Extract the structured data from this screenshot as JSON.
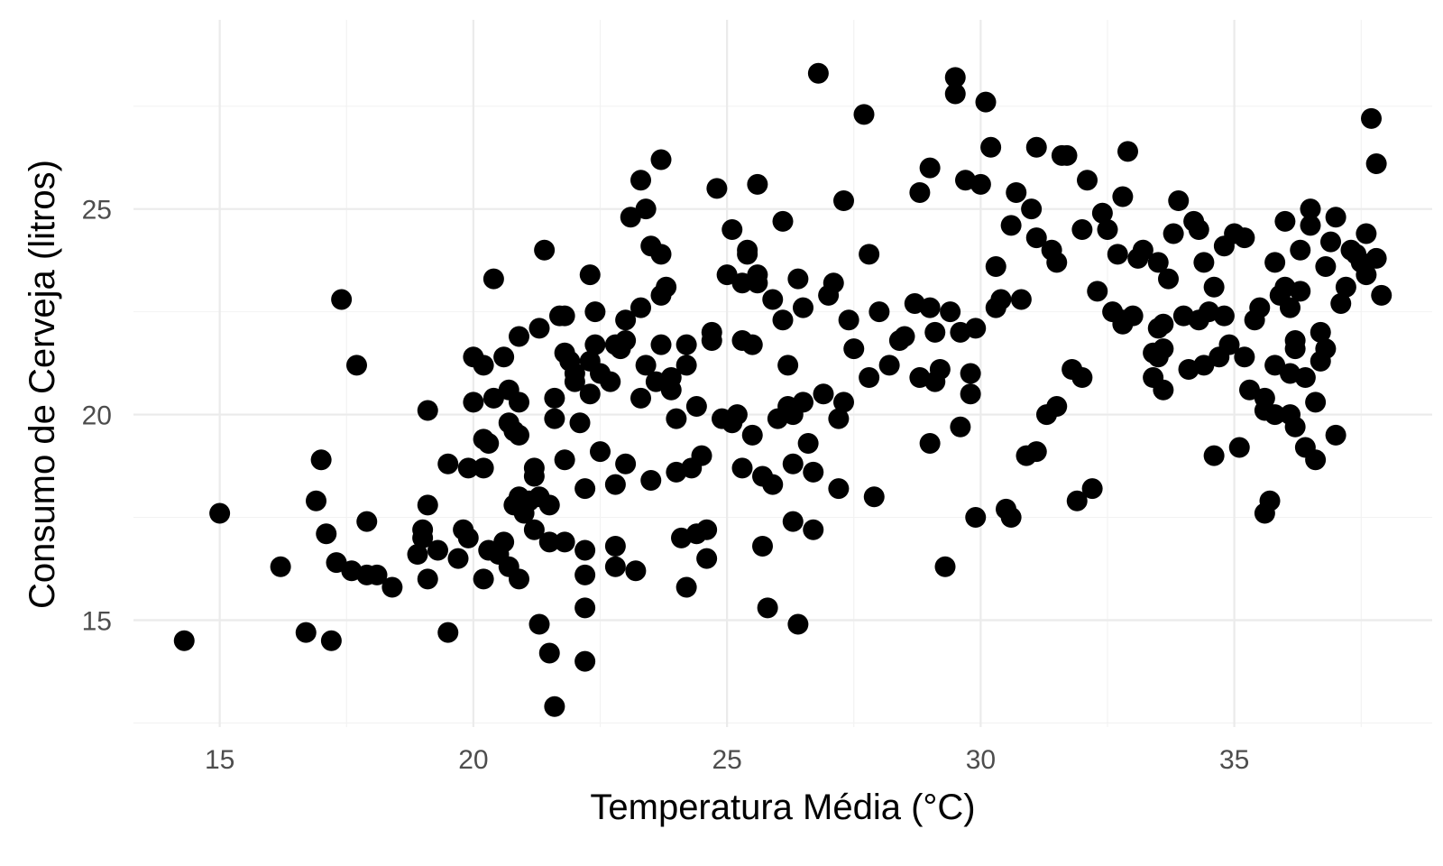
{
  "chart_data": {
    "type": "scatter",
    "xlabel": "Temperatura Média (°C)",
    "ylabel": "Consumo de Cerveja (litros)",
    "xlim": [
      13.3,
      38.9
    ],
    "ylim": [
      12.4,
      29.6
    ],
    "x_ticks": [
      15,
      20,
      25,
      30,
      35
    ],
    "y_ticks": [
      15,
      20,
      25
    ],
    "x_tick_labels": [
      "15",
      "20",
      "25",
      "30",
      "35"
    ],
    "y_tick_labels": [
      "15",
      "20",
      "25"
    ],
    "grid": true,
    "legend": "none",
    "point_color": "#000000",
    "points": [
      [
        14.3,
        14.5
      ],
      [
        15.0,
        17.6
      ],
      [
        16.2,
        16.3
      ],
      [
        16.7,
        14.7
      ],
      [
        17.0,
        18.9
      ],
      [
        16.9,
        17.9
      ],
      [
        17.1,
        17.1
      ],
      [
        17.2,
        14.5
      ],
      [
        17.4,
        22.8
      ],
      [
        17.3,
        16.4
      ],
      [
        17.7,
        21.2
      ],
      [
        17.6,
        16.2
      ],
      [
        17.9,
        16.1
      ],
      [
        17.9,
        17.4
      ],
      [
        18.1,
        16.1
      ],
      [
        18.4,
        15.8
      ],
      [
        18.9,
        16.6
      ],
      [
        19.0,
        17.2
      ],
      [
        19.0,
        17.0
      ],
      [
        19.1,
        16.0
      ],
      [
        19.1,
        20.1
      ],
      [
        19.1,
        17.8
      ],
      [
        19.3,
        16.7
      ],
      [
        19.5,
        18.8
      ],
      [
        19.5,
        14.7
      ],
      [
        19.7,
        16.5
      ],
      [
        19.8,
        17.2
      ],
      [
        19.9,
        18.7
      ],
      [
        19.9,
        17.0
      ],
      [
        20.0,
        20.3
      ],
      [
        20.0,
        21.4
      ],
      [
        20.2,
        21.2
      ],
      [
        20.2,
        16.0
      ],
      [
        20.2,
        18.7
      ],
      [
        20.2,
        19.4
      ],
      [
        20.3,
        19.3
      ],
      [
        20.3,
        16.7
      ],
      [
        20.4,
        23.3
      ],
      [
        20.4,
        20.4
      ],
      [
        20.6,
        21.4
      ],
      [
        20.5,
        16.6
      ],
      [
        20.6,
        16.9
      ],
      [
        20.7,
        20.6
      ],
      [
        20.7,
        19.8
      ],
      [
        20.8,
        19.6
      ],
      [
        20.7,
        16.3
      ],
      [
        20.8,
        17.8
      ],
      [
        20.9,
        21.9
      ],
      [
        20.9,
        20.3
      ],
      [
        20.9,
        18.0
      ],
      [
        20.9,
        16.0
      ],
      [
        20.9,
        19.5
      ],
      [
        21.0,
        17.6
      ],
      [
        21.1,
        17.9
      ],
      [
        21.2,
        18.5
      ],
      [
        21.2,
        18.7
      ],
      [
        21.2,
        17.2
      ],
      [
        21.3,
        14.9
      ],
      [
        21.3,
        22.1
      ],
      [
        21.3,
        18.0
      ],
      [
        21.4,
        24.0
      ],
      [
        21.5,
        17.8
      ],
      [
        21.5,
        16.9
      ],
      [
        21.5,
        14.2
      ],
      [
        21.6,
        20.4
      ],
      [
        21.6,
        19.9
      ],
      [
        21.6,
        12.9
      ],
      [
        21.7,
        22.4
      ],
      [
        21.8,
        21.5
      ],
      [
        21.8,
        22.4
      ],
      [
        21.8,
        16.9
      ],
      [
        21.8,
        18.9
      ],
      [
        21.9,
        21.3
      ],
      [
        22.0,
        21.0
      ],
      [
        22.0,
        20.8
      ],
      [
        22.1,
        19.8
      ],
      [
        22.2,
        18.2
      ],
      [
        22.2,
        16.1
      ],
      [
        22.2,
        16.7
      ],
      [
        22.2,
        15.3
      ],
      [
        22.2,
        14.0
      ],
      [
        22.3,
        21.3
      ],
      [
        22.3,
        20.5
      ],
      [
        22.3,
        23.4
      ],
      [
        22.4,
        22.5
      ],
      [
        22.4,
        21.7
      ],
      [
        22.5,
        21.0
      ],
      [
        22.5,
        19.1
      ],
      [
        22.7,
        20.8
      ],
      [
        22.8,
        21.7
      ],
      [
        22.8,
        18.3
      ],
      [
        22.8,
        16.3
      ],
      [
        22.8,
        16.8
      ],
      [
        22.9,
        21.6
      ],
      [
        23.0,
        21.8
      ],
      [
        23.0,
        22.3
      ],
      [
        23.0,
        18.8
      ],
      [
        23.1,
        24.8
      ],
      [
        23.2,
        16.2
      ],
      [
        23.3,
        25.7
      ],
      [
        23.3,
        22.6
      ],
      [
        23.3,
        20.4
      ],
      [
        23.4,
        25.0
      ],
      [
        23.4,
        21.2
      ],
      [
        23.5,
        24.1
      ],
      [
        23.5,
        18.4
      ],
      [
        23.6,
        20.8
      ],
      [
        23.7,
        23.9
      ],
      [
        23.7,
        22.9
      ],
      [
        23.7,
        21.7
      ],
      [
        23.7,
        26.2
      ],
      [
        23.8,
        23.1
      ],
      [
        23.9,
        20.6
      ],
      [
        23.9,
        20.9
      ],
      [
        24.0,
        19.9
      ],
      [
        24.0,
        18.6
      ],
      [
        24.1,
        17.0
      ],
      [
        24.2,
        15.8
      ],
      [
        24.2,
        21.7
      ],
      [
        24.2,
        21.2
      ],
      [
        24.3,
        18.7
      ],
      [
        24.4,
        17.1
      ],
      [
        24.4,
        20.2
      ],
      [
        24.5,
        19.0
      ],
      [
        24.6,
        17.2
      ],
      [
        24.6,
        16.5
      ],
      [
        24.7,
        22.0
      ],
      [
        24.7,
        21.8
      ],
      [
        24.8,
        25.5
      ],
      [
        24.9,
        19.9
      ],
      [
        25.0,
        23.4
      ],
      [
        25.1,
        24.5
      ],
      [
        25.1,
        19.8
      ],
      [
        25.2,
        20.0
      ],
      [
        25.3,
        21.8
      ],
      [
        25.3,
        23.2
      ],
      [
        25.3,
        18.7
      ],
      [
        25.4,
        24.0
      ],
      [
        25.4,
        23.9
      ],
      [
        25.5,
        21.7
      ],
      [
        25.5,
        19.5
      ],
      [
        25.6,
        25.6
      ],
      [
        25.6,
        23.4
      ],
      [
        25.6,
        23.2
      ],
      [
        25.7,
        16.8
      ],
      [
        25.7,
        18.5
      ],
      [
        25.8,
        15.3
      ],
      [
        25.9,
        22.8
      ],
      [
        25.9,
        18.3
      ],
      [
        26.0,
        19.9
      ],
      [
        26.1,
        24.7
      ],
      [
        26.1,
        22.3
      ],
      [
        26.2,
        21.2
      ],
      [
        26.2,
        20.2
      ],
      [
        26.3,
        18.8
      ],
      [
        26.3,
        20.0
      ],
      [
        26.3,
        17.4
      ],
      [
        26.4,
        23.3
      ],
      [
        26.4,
        14.9
      ],
      [
        26.5,
        22.6
      ],
      [
        26.5,
        20.3
      ],
      [
        26.6,
        19.3
      ],
      [
        26.7,
        17.2
      ],
      [
        26.7,
        18.6
      ],
      [
        26.8,
        28.3
      ],
      [
        26.9,
        20.5
      ],
      [
        27.0,
        22.9
      ],
      [
        27.1,
        23.2
      ],
      [
        27.2,
        19.9
      ],
      [
        27.2,
        18.2
      ],
      [
        27.3,
        25.2
      ],
      [
        27.3,
        20.3
      ],
      [
        27.4,
        22.3
      ],
      [
        27.5,
        21.6
      ],
      [
        27.7,
        27.3
      ],
      [
        27.8,
        23.9
      ],
      [
        27.8,
        20.9
      ],
      [
        27.9,
        18.0
      ],
      [
        28.0,
        22.5
      ],
      [
        28.2,
        21.2
      ],
      [
        28.4,
        21.8
      ],
      [
        28.5,
        21.9
      ],
      [
        28.7,
        22.7
      ],
      [
        28.8,
        20.9
      ],
      [
        28.8,
        25.4
      ],
      [
        29.0,
        26.0
      ],
      [
        29.0,
        22.6
      ],
      [
        29.0,
        19.3
      ],
      [
        29.1,
        22.0
      ],
      [
        29.1,
        20.8
      ],
      [
        29.2,
        21.1
      ],
      [
        29.3,
        16.3
      ],
      [
        29.4,
        22.5
      ],
      [
        29.5,
        28.2
      ],
      [
        29.5,
        27.8
      ],
      [
        29.6,
        22.0
      ],
      [
        29.6,
        19.7
      ],
      [
        29.7,
        25.7
      ],
      [
        29.8,
        21.0
      ],
      [
        29.8,
        20.5
      ],
      [
        29.9,
        17.5
      ],
      [
        29.9,
        22.1
      ],
      [
        30.0,
        25.6
      ],
      [
        30.1,
        27.6
      ],
      [
        30.2,
        26.5
      ],
      [
        30.3,
        23.6
      ],
      [
        30.3,
        22.6
      ],
      [
        30.4,
        22.8
      ],
      [
        30.5,
        17.7
      ],
      [
        30.6,
        17.5
      ],
      [
        30.6,
        24.6
      ],
      [
        30.7,
        25.4
      ],
      [
        30.8,
        22.8
      ],
      [
        30.9,
        19.0
      ],
      [
        31.0,
        25.0
      ],
      [
        31.1,
        24.3
      ],
      [
        31.1,
        26.5
      ],
      [
        31.1,
        19.1
      ],
      [
        31.3,
        20.0
      ],
      [
        31.4,
        24.0
      ],
      [
        31.5,
        23.7
      ],
      [
        31.5,
        20.2
      ],
      [
        31.6,
        26.3
      ],
      [
        31.7,
        26.3
      ],
      [
        31.8,
        21.1
      ],
      [
        31.9,
        17.9
      ],
      [
        32.0,
        24.5
      ],
      [
        32.0,
        20.9
      ],
      [
        32.1,
        25.7
      ],
      [
        32.2,
        18.2
      ],
      [
        32.3,
        23.0
      ],
      [
        32.4,
        24.9
      ],
      [
        32.5,
        24.5
      ],
      [
        32.6,
        22.5
      ],
      [
        32.7,
        23.9
      ],
      [
        32.8,
        22.3
      ],
      [
        32.8,
        22.2
      ],
      [
        32.8,
        25.3
      ],
      [
        32.9,
        26.4
      ],
      [
        33.0,
        22.4
      ],
      [
        33.1,
        23.8
      ],
      [
        33.2,
        24.0
      ],
      [
        33.4,
        21.5
      ],
      [
        33.4,
        20.9
      ],
      [
        33.5,
        22.1
      ],
      [
        33.5,
        21.4
      ],
      [
        33.5,
        23.7
      ],
      [
        33.6,
        22.2
      ],
      [
        33.6,
        21.6
      ],
      [
        33.6,
        20.6
      ],
      [
        33.7,
        23.3
      ],
      [
        33.8,
        24.4
      ],
      [
        33.9,
        25.2
      ],
      [
        34.0,
        22.4
      ],
      [
        34.1,
        21.1
      ],
      [
        34.2,
        24.7
      ],
      [
        34.3,
        22.3
      ],
      [
        34.3,
        24.5
      ],
      [
        34.4,
        23.7
      ],
      [
        34.4,
        21.2
      ],
      [
        34.5,
        22.5
      ],
      [
        34.6,
        19.0
      ],
      [
        34.6,
        23.1
      ],
      [
        34.7,
        21.4
      ],
      [
        34.8,
        22.4
      ],
      [
        34.8,
        24.1
      ],
      [
        34.9,
        21.7
      ],
      [
        35.0,
        24.4
      ],
      [
        35.1,
        19.2
      ],
      [
        35.2,
        21.4
      ],
      [
        35.2,
        24.3
      ],
      [
        35.3,
        20.6
      ],
      [
        35.4,
        22.3
      ],
      [
        35.5,
        22.6
      ],
      [
        35.6,
        20.1
      ],
      [
        35.6,
        17.6
      ],
      [
        35.6,
        20.4
      ],
      [
        35.7,
        17.9
      ],
      [
        35.8,
        23.7
      ],
      [
        35.8,
        20.0
      ],
      [
        35.8,
        21.2
      ],
      [
        35.9,
        22.9
      ],
      [
        36.0,
        23.1
      ],
      [
        36.0,
        24.7
      ],
      [
        36.1,
        20.0
      ],
      [
        36.1,
        22.6
      ],
      [
        36.1,
        21.0
      ],
      [
        36.2,
        21.6
      ],
      [
        36.2,
        21.8
      ],
      [
        36.2,
        19.7
      ],
      [
        36.3,
        23.0
      ],
      [
        36.3,
        24.0
      ],
      [
        36.4,
        20.9
      ],
      [
        36.4,
        19.2
      ],
      [
        36.5,
        24.6
      ],
      [
        36.5,
        25.0
      ],
      [
        36.6,
        18.9
      ],
      [
        36.6,
        20.3
      ],
      [
        36.7,
        22.0
      ],
      [
        36.7,
        21.3
      ],
      [
        36.8,
        21.6
      ],
      [
        36.8,
        23.6
      ],
      [
        36.9,
        24.2
      ],
      [
        37.0,
        24.8
      ],
      [
        37.0,
        19.5
      ],
      [
        37.1,
        22.7
      ],
      [
        37.2,
        23.1
      ],
      [
        37.3,
        24.0
      ],
      [
        37.4,
        23.9
      ],
      [
        37.5,
        23.7
      ],
      [
        37.6,
        23.4
      ],
      [
        37.6,
        24.4
      ],
      [
        37.7,
        27.2
      ],
      [
        37.8,
        26.1
      ],
      [
        37.8,
        23.8
      ],
      [
        37.9,
        22.9
      ]
    ]
  }
}
